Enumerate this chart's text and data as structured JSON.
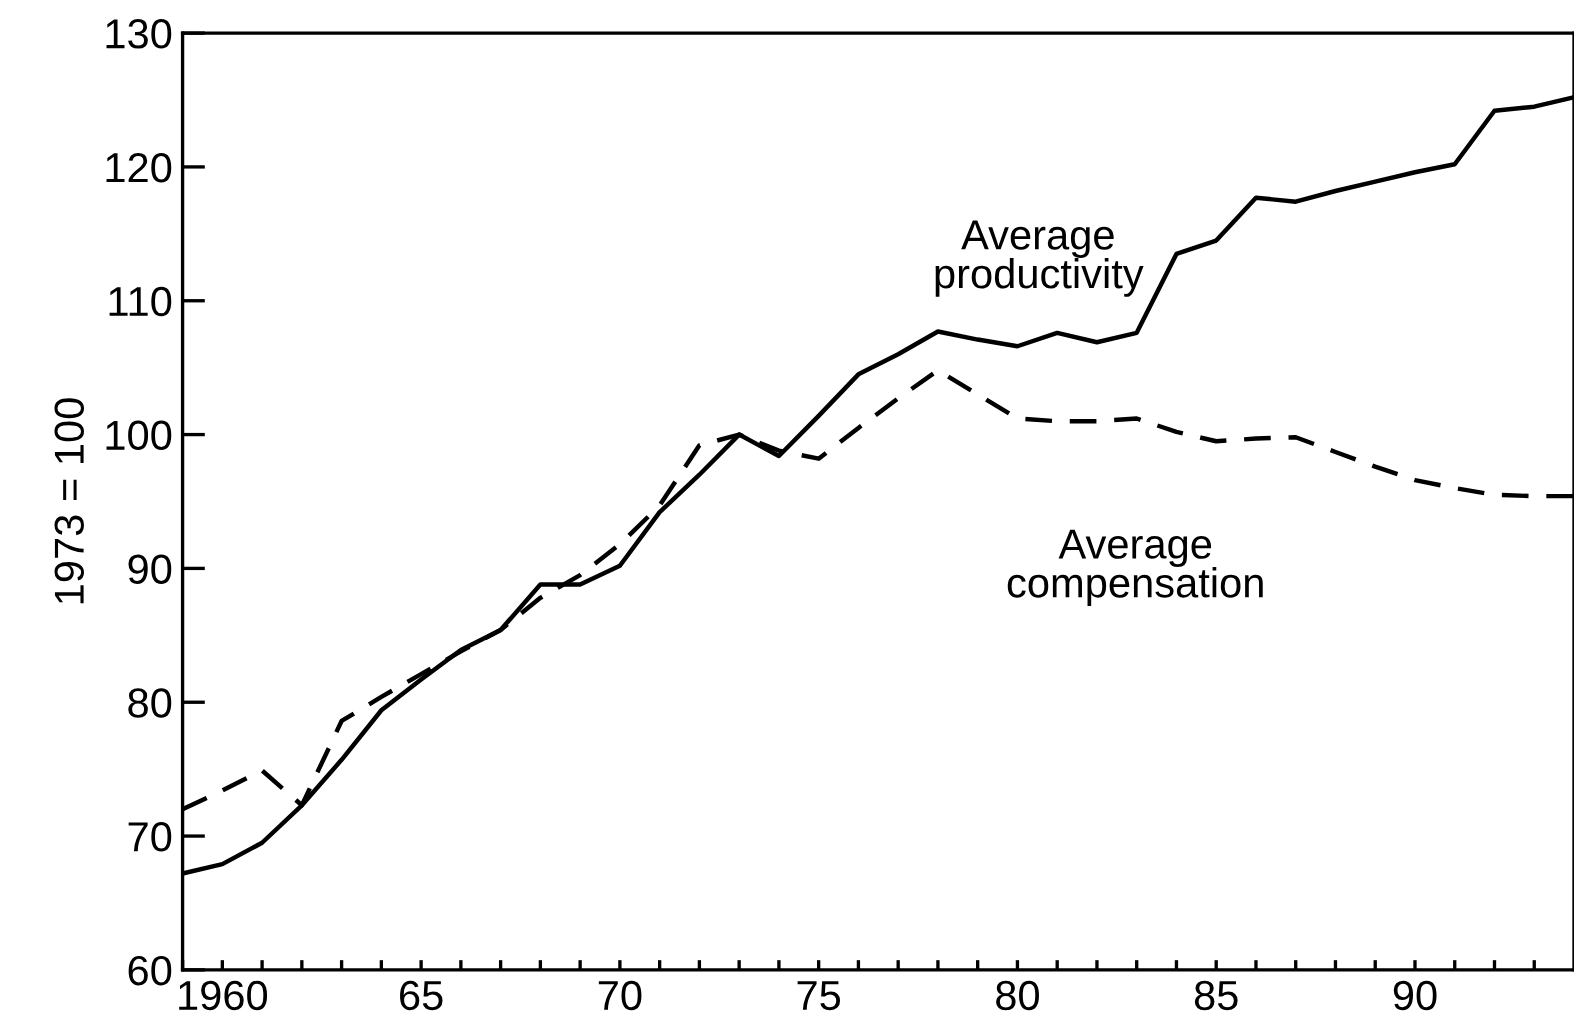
{
  "chart_data": {
    "type": "line",
    "ylabel": "1973 = 100",
    "x": [
      1959,
      1960,
      1961,
      1962,
      1963,
      1964,
      1965,
      1966,
      1967,
      1968,
      1969,
      1970,
      1971,
      1972,
      1973,
      1974,
      1975,
      1976,
      1977,
      1978,
      1979,
      1980,
      1981,
      1982,
      1983,
      1984,
      1985,
      1986,
      1987,
      1988,
      1989,
      1990,
      1991,
      1992,
      1993,
      1994
    ],
    "series": [
      {
        "name": "Average\nproductivity",
        "color": "#000000",
        "line_style": "solid",
        "values": [
          67.2,
          67.9,
          69.5,
          72.3,
          75.7,
          79.4,
          81.7,
          83.9,
          85.4,
          88.8,
          88.8,
          90.2,
          94.2,
          97.0,
          100,
          98.4,
          101.4,
          104.5,
          106.0,
          107.7,
          107.1,
          106.6,
          107.6,
          106.9,
          107.6,
          113.5,
          114.5,
          117.7,
          117.4,
          118.2,
          118.9,
          119.6,
          120.2,
          124.2,
          124.5,
          125.2
        ]
      },
      {
        "name": "Average\ncompensation",
        "color": "#000000",
        "line_style": "dashed",
        "values": [
          72.0,
          73.4,
          74.9,
          72.3,
          78.6,
          80.4,
          82.1,
          83.8,
          85.4,
          87.8,
          89.5,
          91.8,
          94.7,
          99.2,
          100,
          98.8,
          98.2,
          100.5,
          102.7,
          104.8,
          103.0,
          101.2,
          101.0,
          101.0,
          101.2,
          100.2,
          99.5,
          99.7,
          99.8,
          98.7,
          97.6,
          96.6,
          96.0,
          95.5,
          95.4,
          95.4
        ]
      }
    ],
    "xlim": [
      1959,
      1994
    ],
    "ylim": [
      60,
      130
    ],
    "xticks": [
      {
        "value": 1959,
        "label": null
      },
      {
        "value": 1960,
        "label": "1960"
      },
      {
        "value": 1961,
        "label": null
      },
      {
        "value": 1962,
        "label": null
      },
      {
        "value": 1963,
        "label": null
      },
      {
        "value": 1964,
        "label": null
      },
      {
        "value": 1965,
        "label": "65"
      },
      {
        "value": 1966,
        "label": null
      },
      {
        "value": 1967,
        "label": null
      },
      {
        "value": 1968,
        "label": null
      },
      {
        "value": 1969,
        "label": null
      },
      {
        "value": 1970,
        "label": "70"
      },
      {
        "value": 1971,
        "label": null
      },
      {
        "value": 1972,
        "label": null
      },
      {
        "value": 1973,
        "label": null
      },
      {
        "value": 1974,
        "label": null
      },
      {
        "value": 1975,
        "label": "75"
      },
      {
        "value": 1976,
        "label": null
      },
      {
        "value": 1977,
        "label": null
      },
      {
        "value": 1978,
        "label": null
      },
      {
        "value": 1979,
        "label": null
      },
      {
        "value": 1980,
        "label": "80"
      },
      {
        "value": 1981,
        "label": null
      },
      {
        "value": 1982,
        "label": null
      },
      {
        "value": 1983,
        "label": null
      },
      {
        "value": 1984,
        "label": null
      },
      {
        "value": 1985,
        "label": "85"
      },
      {
        "value": 1986,
        "label": null
      },
      {
        "value": 1987,
        "label": null
      },
      {
        "value": 1988,
        "label": null
      },
      {
        "value": 1989,
        "label": null
      },
      {
        "value": 1990,
        "label": "90"
      },
      {
        "value": 1991,
        "label": null
      },
      {
        "value": 1992,
        "label": null
      },
      {
        "value": 1993,
        "label": null
      }
    ],
    "yticks": [
      60,
      70,
      80,
      90,
      100,
      110,
      120,
      130
    ],
    "grid": false,
    "legend": false,
    "marker": "none"
  }
}
